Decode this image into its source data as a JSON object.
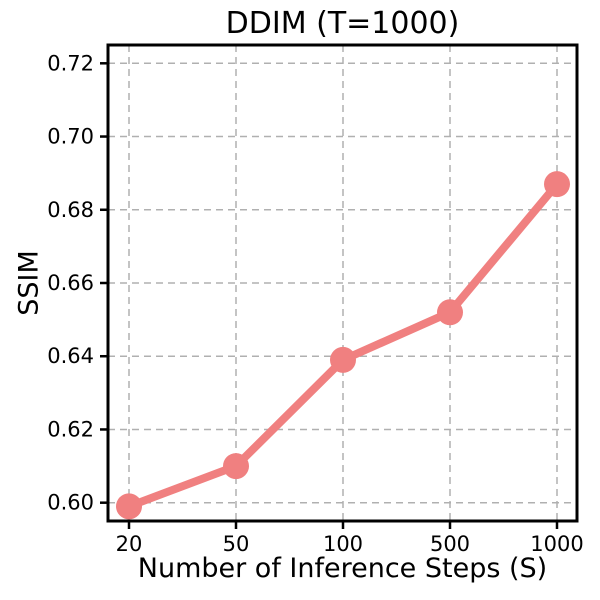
{
  "chart_data": {
    "type": "line",
    "title": "DDIM (T=1000)",
    "xlabel": "Number of Inference Steps (S)",
    "ylabel": "SSIM",
    "categories": [
      "20",
      "50",
      "100",
      "500",
      "1000"
    ],
    "values": [
      0.599,
      0.61,
      0.639,
      0.652,
      0.687
    ],
    "ylim": [
      0.595,
      0.725
    ],
    "yticks": [
      0.6,
      0.62,
      0.64,
      0.66,
      0.68,
      0.7,
      0.72
    ],
    "ytick_labels": [
      "0.60",
      "0.62",
      "0.64",
      "0.66",
      "0.68",
      "0.70",
      "0.72"
    ],
    "line_color": "#f08080",
    "marker_color": "#f08080",
    "grid": true,
    "grid_style": "dashed",
    "grid_color": "#b0b0b0",
    "spine_color": "#000000",
    "legend": "none"
  }
}
